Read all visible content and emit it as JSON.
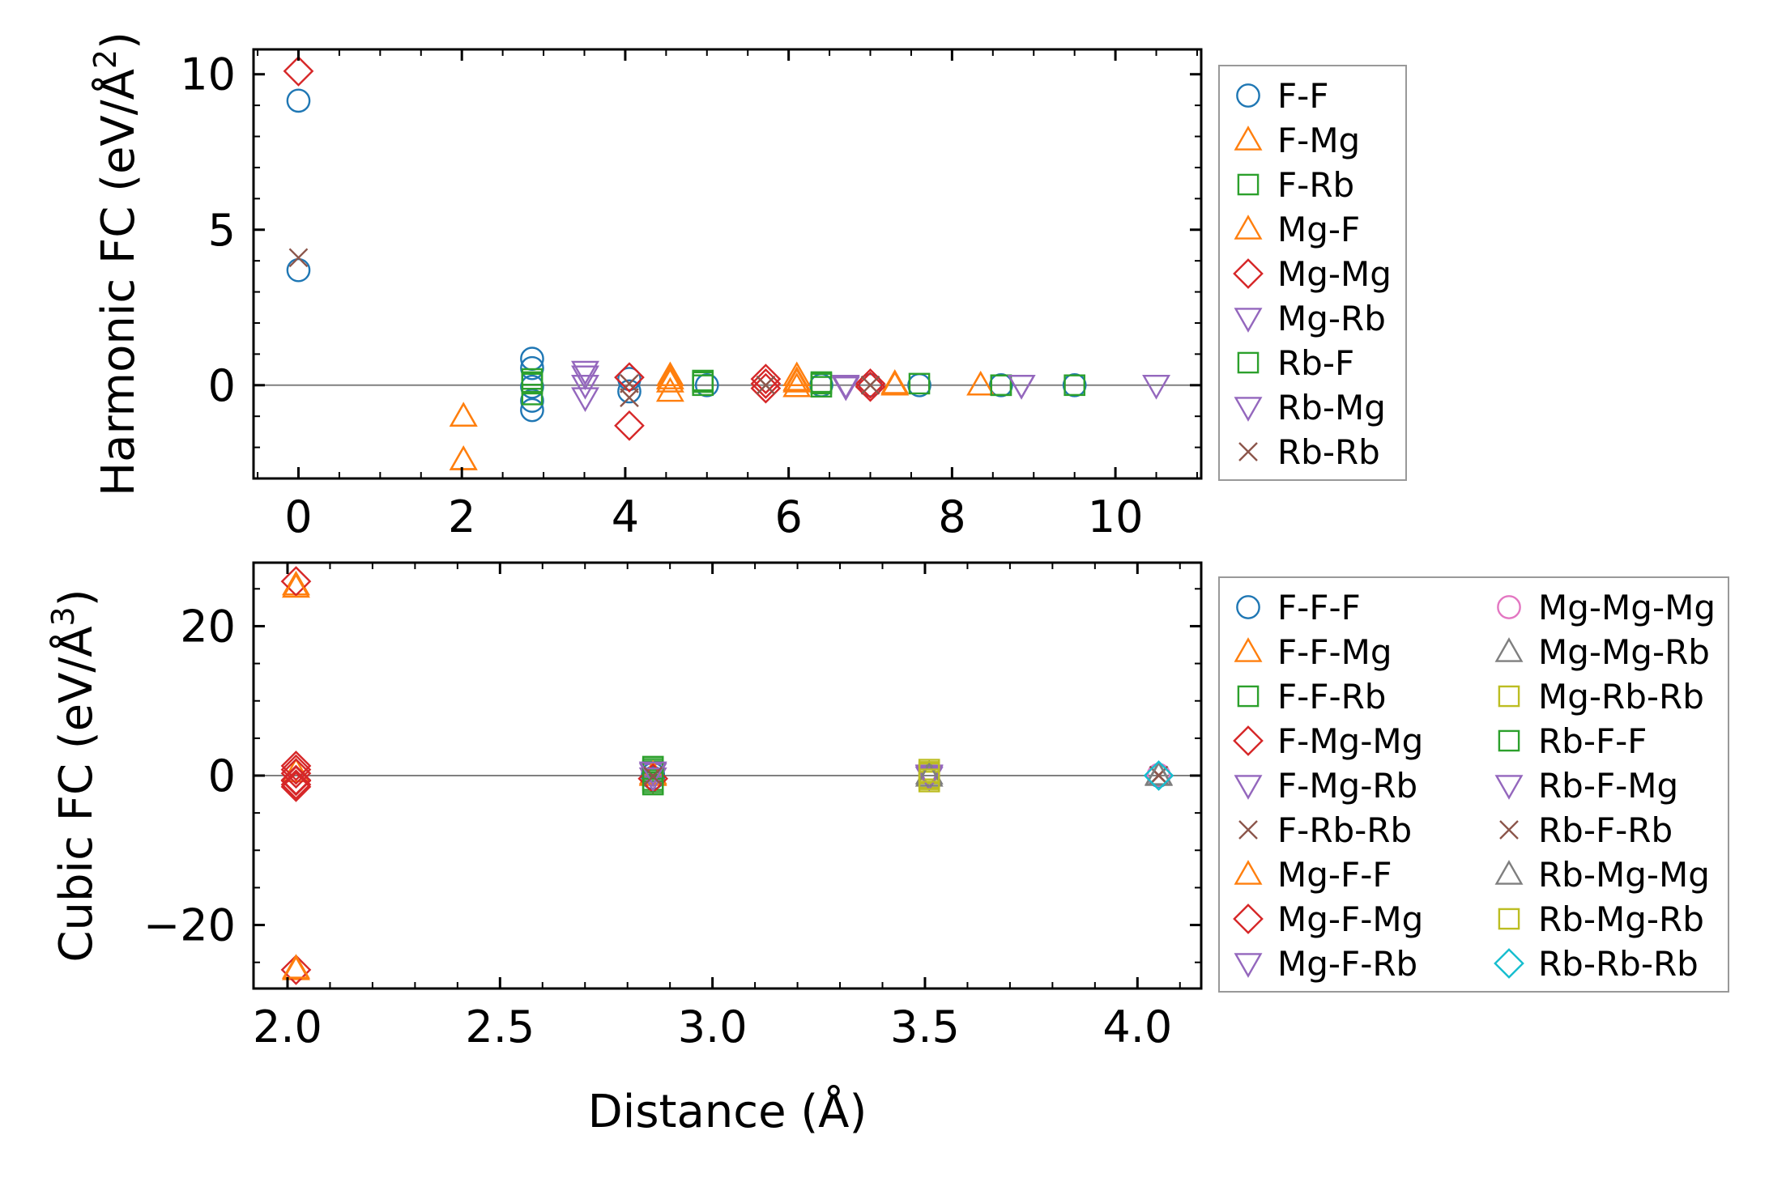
{
  "palette": {
    "blue": "#1f77b4",
    "orange": "#ff7f0e",
    "green": "#2ca02c",
    "red": "#d62728",
    "purple": "#9467bd",
    "brown": "#8c564b",
    "pink": "#e377c2",
    "gray": "#7f7f7f",
    "olive": "#bcbd22",
    "cyan": "#17becf"
  },
  "chart_data": [
    {
      "type": "scatter",
      "name": "harmonic",
      "title": "",
      "xlabel": "",
      "ylabel": "Harmonic FC (eV/Å²)",
      "ylabel_main": "Harmonic FC (eV/Å",
      "ylabel_sup": "2",
      "ylabel_close": ")",
      "xlim": [
        -0.55,
        11.05
      ],
      "ylim": [
        -3.0,
        10.8
      ],
      "xticks": [
        0,
        2,
        4,
        6,
        8,
        10
      ],
      "xtick_labels": [
        "0",
        "2",
        "4",
        "6",
        "8",
        "10"
      ],
      "yticks": [
        0,
        5,
        10
      ],
      "ytick_labels": [
        "0",
        "5",
        "10"
      ],
      "zero_line": true,
      "legend_position": "outside-right",
      "legend_columns": 1,
      "series": [
        {
          "name": "F-F",
          "marker": "circle",
          "color": "#1f77b4",
          "points": [
            [
              0,
              9.15
            ],
            [
              0,
              3.7
            ],
            [
              2.86,
              0.85
            ],
            [
              2.86,
              0.55
            ],
            [
              2.86,
              -0.05
            ],
            [
              2.86,
              -0.5
            ],
            [
              2.86,
              -0.8
            ],
            [
              4.05,
              0.2
            ],
            [
              4.05,
              -0.2
            ],
            [
              5.0,
              0.0
            ],
            [
              6.4,
              0.0
            ],
            [
              7.0,
              0.0
            ],
            [
              7.6,
              0.0
            ],
            [
              8.6,
              0.0
            ],
            [
              9.5,
              0.0
            ]
          ]
        },
        {
          "name": "F-Mg",
          "marker": "triangle-up",
          "color": "#ff7f0e",
          "points": [
            [
              2.02,
              -1.0
            ],
            [
              2.02,
              -2.4
            ],
            [
              4.55,
              0.3
            ],
            [
              4.55,
              0.1
            ],
            [
              4.55,
              -0.2
            ],
            [
              6.1,
              0.3
            ],
            [
              6.1,
              0.1
            ],
            [
              6.1,
              -0.05
            ],
            [
              7.3,
              0.05
            ],
            [
              8.35,
              0.0
            ]
          ]
        },
        {
          "name": "F-Rb",
          "marker": "square",
          "color": "#2ca02c",
          "points": [
            [
              2.86,
              0.2
            ],
            [
              2.86,
              0.05
            ],
            [
              2.86,
              -0.3
            ],
            [
              4.95,
              0.15
            ],
            [
              4.95,
              0.0
            ],
            [
              6.4,
              0.1
            ],
            [
              6.4,
              -0.05
            ],
            [
              7.6,
              0.05
            ],
            [
              8.6,
              0.0
            ],
            [
              9.5,
              0.0
            ]
          ]
        },
        {
          "name": "Mg-F",
          "marker": "triangle-up",
          "color": "#ff7f0e",
          "points": [
            [
              2.02,
              -1.0
            ],
            [
              2.02,
              -2.4
            ],
            [
              4.55,
              0.2
            ],
            [
              6.1,
              0.15
            ],
            [
              7.3,
              0.0
            ],
            [
              8.35,
              0.0
            ]
          ]
        },
        {
          "name": "Mg-Mg",
          "marker": "diamond",
          "color": "#d62728",
          "points": [
            [
              0,
              10.1
            ],
            [
              4.05,
              0.25
            ],
            [
              4.05,
              -1.3
            ],
            [
              5.72,
              0.2
            ],
            [
              5.72,
              0.05
            ],
            [
              5.72,
              -0.1
            ],
            [
              7.0,
              0.05
            ],
            [
              7.0,
              -0.05
            ]
          ]
        },
        {
          "name": "Mg-Rb",
          "marker": "triangle-down",
          "color": "#9467bd",
          "points": [
            [
              3.51,
              0.45
            ],
            [
              3.51,
              0.0
            ],
            [
              3.51,
              -0.4
            ],
            [
              6.7,
              0.0
            ],
            [
              8.85,
              0.0
            ],
            [
              10.5,
              0.0
            ]
          ]
        },
        {
          "name": "Rb-F",
          "marker": "square",
          "color": "#2ca02c",
          "points": [
            [
              2.86,
              0.1
            ],
            [
              4.95,
              0.1
            ],
            [
              6.4,
              0.05
            ],
            [
              8.6,
              0.0
            ]
          ]
        },
        {
          "name": "Rb-Mg",
          "marker": "triangle-down",
          "color": "#9467bd",
          "points": [
            [
              3.51,
              0.3
            ],
            [
              6.7,
              -0.05
            ],
            [
              8.85,
              0.0
            ]
          ]
        },
        {
          "name": "Rb-Rb",
          "marker": "x",
          "color": "#8c564b",
          "points": [
            [
              0,
              4.1
            ],
            [
              4.05,
              0.05
            ],
            [
              4.05,
              -0.4
            ],
            [
              5.72,
              0.0
            ],
            [
              7.0,
              0.0
            ]
          ]
        }
      ]
    },
    {
      "type": "scatter",
      "name": "cubic",
      "title": "",
      "xlabel": "Distance (Å)",
      "ylabel": "Cubic FC (eV/Å³)",
      "ylabel_main": "Cubic FC (eV/Å",
      "ylabel_sup": "3",
      "ylabel_close": ")",
      "xlim": [
        1.92,
        4.15
      ],
      "ylim": [
        -28.5,
        28.5
      ],
      "xticks": [
        2.0,
        2.5,
        3.0,
        3.5,
        4.0
      ],
      "xtick_labels": [
        "2.0",
        "2.5",
        "3.0",
        "3.5",
        "4.0"
      ],
      "yticks": [
        -20,
        0,
        20
      ],
      "ytick_labels": [
        "−20",
        "0",
        "20"
      ],
      "zero_line": true,
      "legend_position": "outside-right",
      "legend_columns": 2,
      "series": [
        {
          "name": "F-F-F",
          "marker": "circle",
          "color": "#1f77b4",
          "points": [
            [
              2.86,
              0.2
            ],
            [
              2.86,
              -0.3
            ],
            [
              4.05,
              0.0
            ]
          ]
        },
        {
          "name": "F-F-Mg",
          "marker": "triangle-up",
          "color": "#ff7f0e",
          "points": [
            [
              2.02,
              25.5
            ],
            [
              2.02,
              -26.0
            ],
            [
              2.02,
              0.5
            ],
            [
              2.86,
              0.0
            ]
          ]
        },
        {
          "name": "F-F-Rb",
          "marker": "square",
          "color": "#2ca02c",
          "points": [
            [
              2.86,
              1.2
            ],
            [
              2.86,
              0.6
            ],
            [
              2.86,
              -0.6
            ],
            [
              2.86,
              -1.2
            ]
          ]
        },
        {
          "name": "F-Mg-Mg",
          "marker": "diamond",
          "color": "#d62728",
          "points": [
            [
              2.02,
              26.0
            ],
            [
              2.02,
              1.3
            ],
            [
              2.02,
              0.3
            ],
            [
              2.02,
              -0.7
            ],
            [
              2.02,
              -1.5
            ],
            [
              2.02,
              -26.0
            ]
          ]
        },
        {
          "name": "F-Mg-Rb",
          "marker": "triangle-down",
          "color": "#9467bd",
          "points": [
            [
              2.86,
              0.3
            ],
            [
              3.51,
              0.0
            ]
          ]
        },
        {
          "name": "F-Rb-Rb",
          "marker": "x",
          "color": "#8c564b",
          "points": [
            [
              2.86,
              0.0
            ],
            [
              4.05,
              0.0
            ]
          ]
        },
        {
          "name": "Mg-F-F",
          "marker": "triangle-up",
          "color": "#ff7f0e",
          "points": [
            [
              2.02,
              -25.8
            ],
            [
              2.02,
              25.2
            ],
            [
              2.86,
              0.2
            ]
          ]
        },
        {
          "name": "Mg-F-Mg",
          "marker": "diamond",
          "color": "#d62728",
          "points": [
            [
              2.02,
              -0.6
            ],
            [
              2.02,
              -1.2
            ],
            [
              2.02,
              0.8
            ],
            [
              2.86,
              -0.4
            ]
          ]
        },
        {
          "name": "Mg-F-Rb",
          "marker": "triangle-down",
          "color": "#9467bd",
          "points": [
            [
              2.86,
              -0.3
            ],
            [
              3.51,
              0.1
            ]
          ]
        },
        {
          "name": "Mg-Mg-Mg",
          "marker": "circle",
          "color": "#e377c2",
          "points": [
            [
              4.05,
              0.1
            ]
          ]
        },
        {
          "name": "Mg-Mg-Rb",
          "marker": "triangle-up",
          "color": "#7f7f7f",
          "points": [
            [
              3.51,
              0.2
            ],
            [
              4.05,
              0.0
            ]
          ]
        },
        {
          "name": "Mg-Rb-Rb",
          "marker": "square",
          "color": "#bcbd22",
          "points": [
            [
              3.51,
              0.8
            ],
            [
              3.51,
              0.3
            ],
            [
              3.51,
              -0.3
            ],
            [
              3.51,
              -0.8
            ]
          ]
        },
        {
          "name": "Rb-F-F",
          "marker": "square",
          "color": "#2ca02c",
          "points": [
            [
              2.86,
              0.9
            ],
            [
              2.86,
              -0.9
            ]
          ]
        },
        {
          "name": "Rb-F-Mg",
          "marker": "triangle-down",
          "color": "#9467bd",
          "points": [
            [
              2.86,
              0.5
            ],
            [
              3.51,
              -0.2
            ]
          ]
        },
        {
          "name": "Rb-F-Rb",
          "marker": "x",
          "color": "#8c564b",
          "points": [
            [
              2.86,
              -0.1
            ],
            [
              4.05,
              0.05
            ]
          ]
        },
        {
          "name": "Rb-Mg-Mg",
          "marker": "triangle-up",
          "color": "#7f7f7f",
          "points": [
            [
              3.51,
              -0.1
            ],
            [
              4.05,
              0.1
            ]
          ]
        },
        {
          "name": "Rb-Mg-Rb",
          "marker": "square",
          "color": "#bcbd22",
          "points": [
            [
              3.51,
              0.5
            ],
            [
              3.51,
              -0.5
            ]
          ]
        },
        {
          "name": "Rb-Rb-Rb",
          "marker": "diamond",
          "color": "#17becf",
          "points": [
            [
              4.05,
              0.0
            ]
          ]
        }
      ]
    }
  ]
}
